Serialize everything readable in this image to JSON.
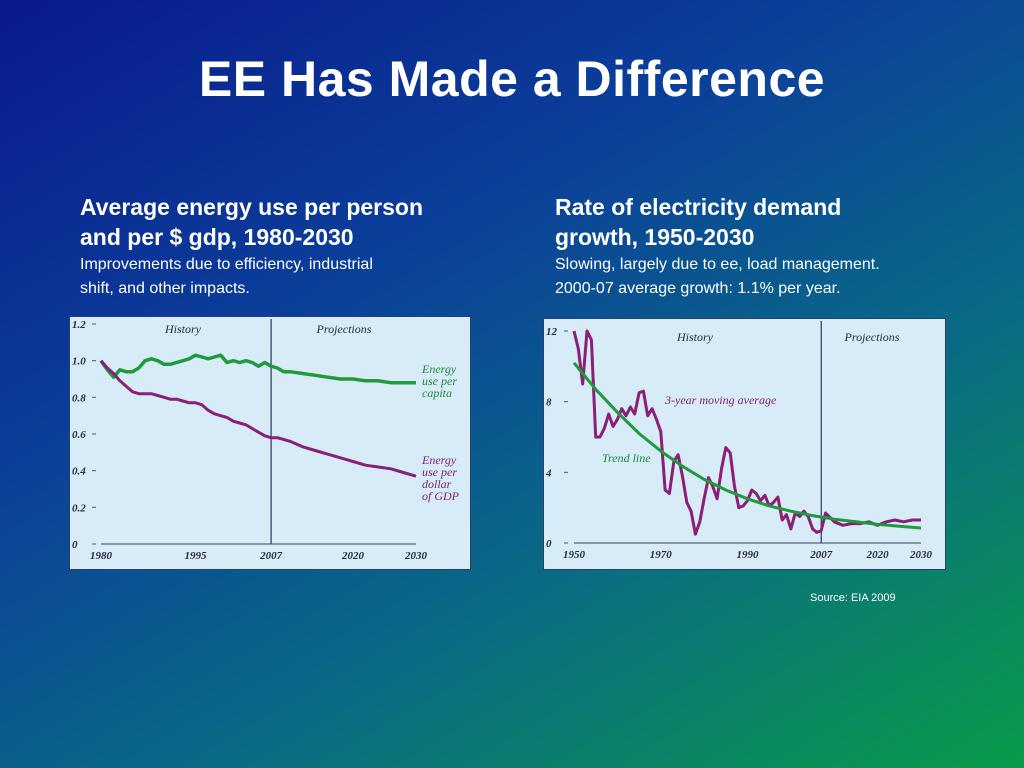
{
  "title": "EE Has Made a Difference",
  "left_caption": {
    "head_line1": "Average energy use per person",
    "head_line2": "and per $ gdp, 1980-2030",
    "sub_line1": "Improvements due to efficiency, industrial",
    "sub_line2": "shift, and other impacts."
  },
  "right_caption": {
    "head_line1": "Rate of electricity demand",
    "head_line2": "growth, 1950-2030",
    "sub_line1": "Slowing, largely due to ee, load management.",
    "sub_line2": "2000-07 average growth: 1.1% per year."
  },
  "source": "Source: EIA 2009",
  "colors": {
    "green": "#1f9a3c",
    "purple": "#8a1f78",
    "divider": "#2a3560"
  },
  "chart_data": [
    {
      "type": "line",
      "xlim": [
        1980,
        2030
      ],
      "ylim": [
        0,
        1.2
      ],
      "x_ticks": [
        1980,
        1995,
        2007,
        2020,
        2030
      ],
      "y_ticks": [
        "0",
        "0.2",
        "0.4",
        "0.6",
        "0.8",
        "1.0",
        "1.2"
      ],
      "y_tick_values": [
        0,
        0.2,
        0.4,
        0.6,
        0.8,
        1.0,
        1.2
      ],
      "divider_x": 2007,
      "region_labels": [
        "History",
        "Projections"
      ],
      "series": [
        {
          "label_lines": [
            "Energy",
            "use per",
            "capita"
          ],
          "color": "green",
          "x": [
            1980,
            1981,
            1982,
            1983,
            1984,
            1985,
            1986,
            1987,
            1988,
            1989,
            1990,
            1991,
            1992,
            1993,
            1994,
            1995,
            1996,
            1997,
            1998,
            1999,
            2000,
            2001,
            2002,
            2003,
            2004,
            2005,
            2006,
            2007,
            2008,
            2009,
            2010,
            2012,
            2014,
            2016,
            2018,
            2020,
            2022,
            2024,
            2026,
            2028,
            2030
          ],
          "y": [
            1.0,
            0.95,
            0.91,
            0.95,
            0.94,
            0.94,
            0.96,
            1.0,
            1.01,
            1.0,
            0.98,
            0.98,
            0.99,
            1.0,
            1.01,
            1.03,
            1.02,
            1.01,
            1.02,
            1.03,
            0.99,
            1.0,
            0.99,
            1.0,
            0.99,
            0.97,
            0.99,
            0.97,
            0.96,
            0.94,
            0.94,
            0.93,
            0.92,
            0.91,
            0.9,
            0.9,
            0.89,
            0.89,
            0.88,
            0.88,
            0.88
          ]
        },
        {
          "label_lines": [
            "Energy",
            "use per",
            "dollar",
            "of GDP"
          ],
          "color": "purple",
          "x": [
            1980,
            1981,
            1982,
            1983,
            1984,
            1985,
            1986,
            1987,
            1988,
            1989,
            1990,
            1991,
            1992,
            1993,
            1994,
            1995,
            1996,
            1997,
            1998,
            1999,
            2000,
            2001,
            2002,
            2003,
            2004,
            2005,
            2006,
            2007,
            2008,
            2010,
            2012,
            2014,
            2016,
            2018,
            2020,
            2022,
            2024,
            2026,
            2028,
            2030
          ],
          "y": [
            1.0,
            0.96,
            0.93,
            0.89,
            0.86,
            0.83,
            0.82,
            0.82,
            0.82,
            0.81,
            0.8,
            0.79,
            0.79,
            0.78,
            0.77,
            0.77,
            0.76,
            0.73,
            0.71,
            0.7,
            0.69,
            0.67,
            0.66,
            0.65,
            0.63,
            0.61,
            0.59,
            0.58,
            0.58,
            0.56,
            0.53,
            0.51,
            0.49,
            0.47,
            0.45,
            0.43,
            0.42,
            0.41,
            0.39,
            0.37
          ]
        }
      ]
    },
    {
      "type": "line",
      "xlim": [
        1950,
        2030
      ],
      "ylim": [
        0,
        12
      ],
      "x_ticks": [
        1950,
        1970,
        1990,
        2007,
        2020,
        2030
      ],
      "y_ticks": [
        "0",
        "4",
        "8",
        "12"
      ],
      "y_tick_values": [
        0,
        4,
        8,
        12
      ],
      "divider_x": 2007,
      "region_labels": [
        "History",
        "Projections"
      ],
      "series": [
        {
          "label": "3-year moving average",
          "color": "purple",
          "x": [
            1950,
            1951,
            1952,
            1953,
            1954,
            1955,
            1956,
            1957,
            1958,
            1959,
            1960,
            1961,
            1962,
            1963,
            1964,
            1965,
            1966,
            1967,
            1968,
            1969,
            1970,
            1971,
            1972,
            1973,
            1974,
            1975,
            1976,
            1977,
            1978,
            1979,
            1980,
            1981,
            1982,
            1983,
            1984,
            1985,
            1986,
            1987,
            1988,
            1989,
            1990,
            1991,
            1992,
            1993,
            1994,
            1995,
            1996,
            1997,
            1998,
            1999,
            2000,
            2001,
            2002,
            2003,
            2004,
            2005,
            2006,
            2007,
            2008,
            2010,
            2012,
            2014,
            2016,
            2018,
            2020,
            2022,
            2024,
            2026,
            2028,
            2030
          ],
          "y": [
            12,
            11,
            9,
            12,
            11.5,
            6,
            6,
            6.5,
            7.3,
            6.6,
            7,
            7.6,
            7.2,
            7.7,
            7.3,
            8.5,
            8.6,
            7.2,
            7.6,
            7,
            6.3,
            3,
            2.8,
            4.6,
            5,
            3.8,
            2.3,
            1.8,
            0.5,
            1.2,
            2.5,
            3.7,
            3.2,
            2.5,
            4.2,
            5.4,
            5.1,
            3.2,
            2,
            2.1,
            2.4,
            3,
            2.8,
            2.4,
            2.7,
            2.1,
            2.3,
            2.6,
            1.3,
            1.6,
            0.8,
            1.7,
            1.5,
            1.8,
            1.5,
            0.8,
            0.6,
            0.7,
            1.7,
            1.2,
            1,
            1.1,
            1.1,
            1.2,
            1,
            1.2,
            1.3,
            1.2,
            1.3,
            1.3
          ]
        },
        {
          "label": "Trend line",
          "color": "green",
          "x": [
            1950,
            1955,
            1960,
            1965,
            1970,
            1975,
            1980,
            1985,
            1990,
            1995,
            2000,
            2005,
            2010,
            2015,
            2020,
            2025,
            2030
          ],
          "y": [
            10.2,
            8.7,
            7.4,
            6.2,
            5.2,
            4.35,
            3.6,
            3.0,
            2.5,
            2.1,
            1.8,
            1.55,
            1.35,
            1.2,
            1.05,
            0.95,
            0.85
          ]
        }
      ]
    }
  ]
}
